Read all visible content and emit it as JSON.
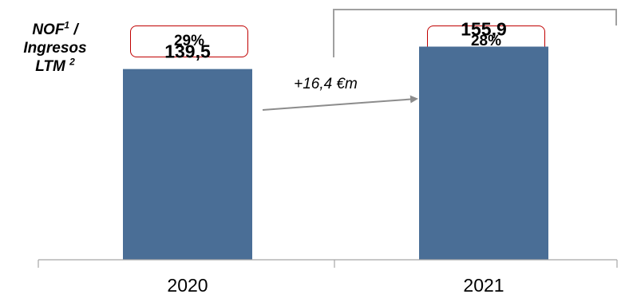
{
  "side_label": {
    "line1": "NOF",
    "sup1": "1",
    "line1_suffix": " /",
    "line2": "Ingresos",
    "line3": "LTM",
    "sup3": "2"
  },
  "ratios": [
    "29%",
    "28%"
  ],
  "change_label": "+16,4 €m",
  "chart_data": {
    "type": "bar",
    "categories": [
      "2020",
      "2021"
    ],
    "values": [
      139.5,
      155.9
    ],
    "value_labels": [
      "139,5",
      "155,9"
    ],
    "title": "",
    "xlabel": "",
    "ylabel": "",
    "ylim": [
      0,
      190
    ],
    "grid": false,
    "bar_color": "#4a6e96"
  },
  "colors": {
    "bar": "#4a6e96",
    "box_border": "#c00000",
    "arrow": "#8c8c8c",
    "bracket": "#a0a0a0",
    "axis": "#a6a6a6"
  }
}
